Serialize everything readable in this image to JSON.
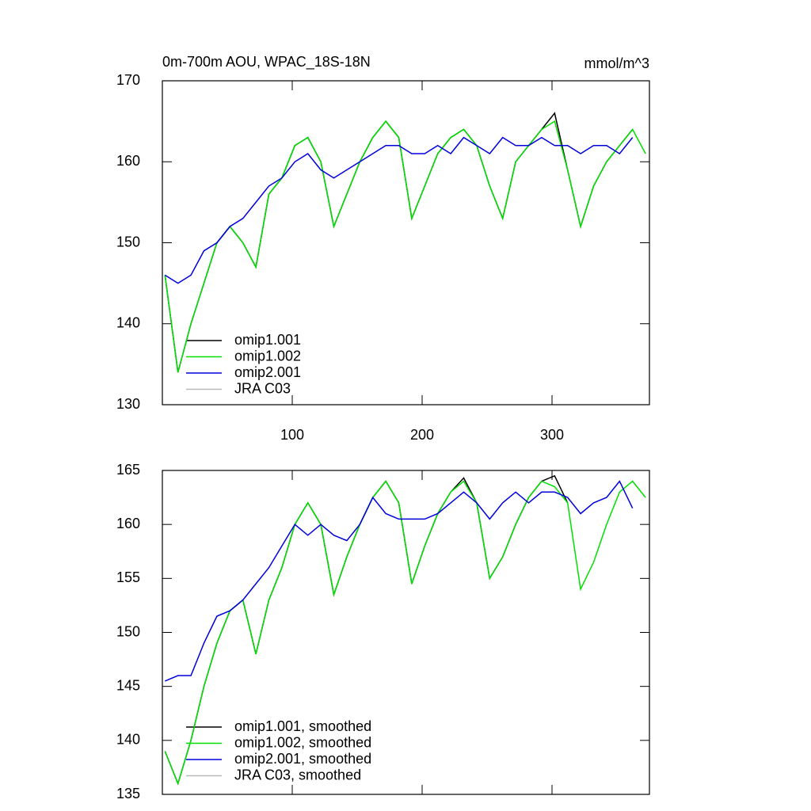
{
  "chart_data": [
    {
      "type": "line",
      "title": "0m-700m AOU, WPAC_18S-18N",
      "y_unit": "mmol/m^3",
      "x": [
        2,
        12,
        22,
        32,
        42,
        52,
        62,
        72,
        82,
        92,
        102,
        112,
        122,
        132,
        142,
        152,
        162,
        172,
        182,
        192,
        202,
        212,
        222,
        232,
        242,
        252,
        262,
        272,
        282,
        292,
        302,
        312,
        322,
        332,
        342,
        352,
        362,
        372
      ],
      "xlim": [
        0,
        375
      ],
      "xticks": [
        100,
        200,
        300
      ],
      "ylim": [
        130,
        170
      ],
      "yticks": [
        130,
        140,
        150,
        160,
        170
      ],
      "legend": "lower-left",
      "series": [
        {
          "name": "omip1.001",
          "color": "#000000",
          "values": [
            146,
            134,
            140,
            145,
            150,
            152,
            150,
            147,
            156,
            158,
            162,
            163,
            160,
            152,
            156,
            160,
            163,
            165,
            163,
            153,
            157,
            161,
            163,
            164,
            162,
            157,
            153,
            160,
            162,
            164,
            166,
            159,
            152,
            157,
            160,
            162,
            164,
            null
          ]
        },
        {
          "name": "omip1.002",
          "color": "#00e000",
          "values": [
            146,
            134,
            140,
            145,
            150,
            152,
            150,
            147,
            156,
            158,
            162,
            163,
            160,
            152,
            156,
            160,
            163,
            165,
            163,
            153,
            157,
            161,
            163,
            164,
            162,
            157,
            153,
            160,
            162,
            164,
            165,
            159,
            152,
            157,
            160,
            162,
            164,
            161
          ]
        },
        {
          "name": "omip2.001",
          "color": "#0000dd",
          "values": [
            146,
            145,
            146,
            149,
            150,
            152,
            153,
            155,
            157,
            158,
            160,
            161,
            159,
            158,
            159,
            160,
            161,
            162,
            162,
            161,
            161,
            162,
            161,
            163,
            162,
            161,
            163,
            162,
            162,
            163,
            162,
            162,
            161,
            162,
            162,
            161,
            163,
            null
          ]
        },
        {
          "name": "JRA C03",
          "color": "#bbbbbb",
          "values": [
            null,
            null,
            null,
            null,
            null,
            null,
            null,
            null,
            null,
            null,
            null,
            null,
            null,
            null,
            null,
            null,
            null,
            null,
            null,
            null,
            null,
            null,
            null,
            null,
            null,
            null,
            null,
            null,
            null,
            null,
            null,
            null,
            null,
            null,
            null,
            null,
            null,
            null
          ]
        }
      ]
    },
    {
      "type": "line",
      "x": [
        2,
        12,
        22,
        32,
        42,
        52,
        62,
        72,
        82,
        92,
        102,
        112,
        122,
        132,
        142,
        152,
        162,
        172,
        182,
        192,
        202,
        212,
        222,
        232,
        242,
        252,
        262,
        272,
        282,
        292,
        302,
        312,
        322,
        332,
        342,
        352,
        362,
        372
      ],
      "xlim": [
        0,
        375
      ],
      "ylim": [
        135,
        165
      ],
      "yticks": [
        135,
        140,
        145,
        150,
        155,
        160,
        165
      ],
      "legend": "lower-left",
      "series": [
        {
          "name": "omip1.001, smoothed",
          "color": "#000000",
          "values": [
            139,
            136,
            140,
            145,
            149,
            152,
            153,
            148,
            153,
            156,
            160,
            162,
            160,
            153.5,
            157,
            160,
            162.5,
            164,
            162,
            154.5,
            158,
            161,
            163,
            164.3,
            162,
            155,
            157,
            160,
            162.5,
            164,
            164.5,
            162,
            null,
            null,
            null,
            null,
            null,
            null
          ]
        },
        {
          "name": "omip1.002, smoothed",
          "color": "#00e000",
          "values": [
            139,
            136,
            140,
            145,
            149,
            152,
            153,
            148,
            153,
            156,
            160,
            162,
            160,
            153.5,
            157,
            160,
            162.5,
            164,
            162,
            154.5,
            158,
            161,
            163,
            164,
            162,
            155,
            157,
            160,
            162.5,
            164,
            163.5,
            162,
            154,
            156.5,
            160,
            163,
            164,
            162.5
          ]
        },
        {
          "name": "omip2.001, smoothed",
          "color": "#0000dd",
          "values": [
            145.5,
            146,
            146,
            149,
            151.5,
            152,
            153,
            154.5,
            156,
            158,
            160,
            159,
            160,
            159,
            158.5,
            160,
            162.5,
            161,
            160.5,
            160.5,
            160.5,
            161,
            162,
            163,
            162,
            160.5,
            162,
            163,
            162,
            163,
            163,
            162.5,
            161,
            162,
            162.5,
            164,
            161.5,
            null
          ]
        },
        {
          "name": "JRA C03, smoothed",
          "color": "#bbbbbb",
          "values": [
            null,
            null,
            null,
            null,
            null,
            null,
            null,
            null,
            null,
            null,
            null,
            null,
            null,
            null,
            null,
            null,
            null,
            null,
            null,
            null,
            null,
            null,
            null,
            null,
            null,
            null,
            null,
            null,
            null,
            null,
            null,
            null,
            null,
            null,
            null,
            null,
            null,
            null
          ]
        }
      ]
    }
  ]
}
